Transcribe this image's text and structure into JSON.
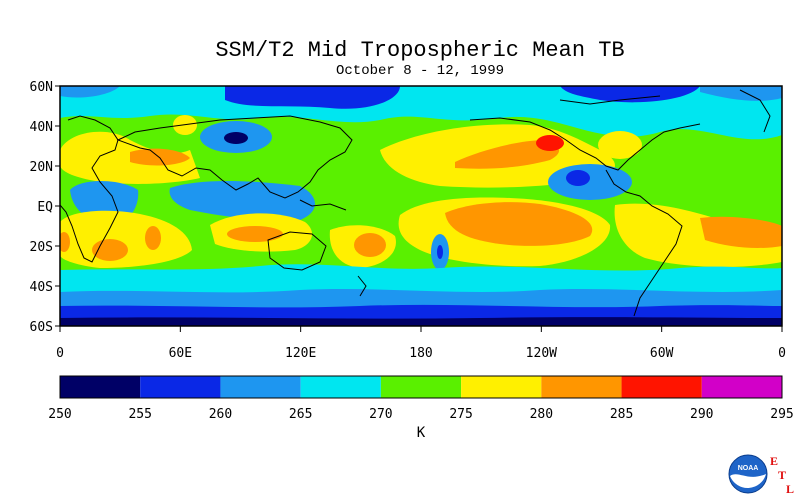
{
  "title": "SSM/T2 Mid Tropospheric Mean TB",
  "subtitle": "October 8 - 12, 1999",
  "lat_labels": [
    "60N",
    "40N",
    "20N",
    "EQ",
    "20S",
    "40S",
    "60S"
  ],
  "lon_labels": [
    "0",
    "60E",
    "120E",
    "180",
    "120W",
    "60W",
    "0"
  ],
  "colorbar": {
    "unit": "K",
    "tick_labels": [
      "250",
      "255",
      "260",
      "265",
      "270",
      "275",
      "280",
      "285",
      "290",
      "295"
    ],
    "colors": [
      "#000066",
      "#0a28e6",
      "#1e96f0",
      "#00e6f0",
      "#5af000",
      "#fff000",
      "#ff9600",
      "#ff1400",
      "#d200c8"
    ]
  },
  "logo": {
    "text": "NOAA",
    "letters": [
      "E",
      "T",
      "L"
    ]
  }
}
